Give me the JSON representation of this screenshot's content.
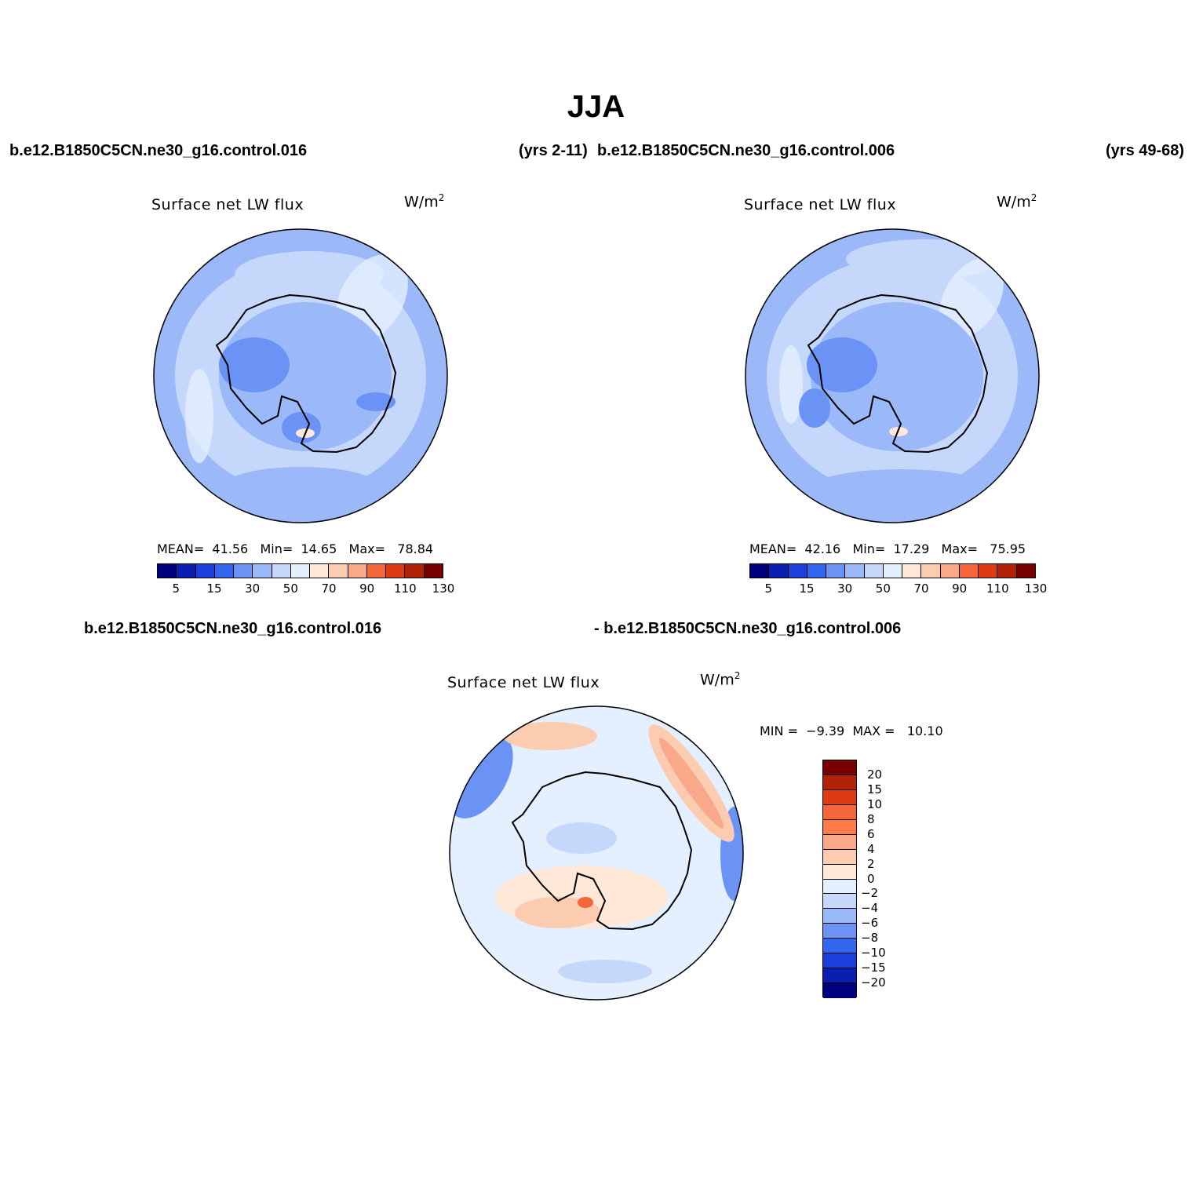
{
  "title": "JJA",
  "header": {
    "case1": "b.e12.B1850C5CN.ne30_g16.control.016",
    "years1": "(yrs 2-11)",
    "case2": "b.e12.B1850C5CN.ne30_g16.control.006",
    "years2": "(yrs 49-68)"
  },
  "diff_header": {
    "left": "b.e12.B1850C5CN.ne30_g16.control.016",
    "right": "- b.e12.B1850C5CN.ne30_g16.control.006"
  },
  "panels": [
    {
      "title": "Surface net LW flux",
      "units": "W/m",
      "units_exp": "2",
      "stats": {
        "mean_label": "MEAN=",
        "mean": "41.56",
        "min_label": "Min=",
        "min": "14.65",
        "max_label": "Max=",
        "max": "78.84"
      }
    },
    {
      "title": "Surface net LW flux",
      "units": "W/m",
      "units_exp": "2",
      "stats": {
        "mean_label": "MEAN=",
        "mean": "42.16",
        "min_label": "Min=",
        "min": "17.29",
        "max_label": "Max=",
        "max": "75.95"
      }
    },
    {
      "title": "Surface net LW flux",
      "units": "W/m",
      "units_exp": "2",
      "stats": {
        "min_label": "MIN =",
        "min": "−9.39",
        "max_label": "MAX =",
        "max": "10.10"
      }
    }
  ],
  "colorbar_main": {
    "tick_labels": [
      "5",
      "15",
      "30",
      "50",
      "70",
      "90",
      "110",
      "130"
    ],
    "colors": [
      "#00007f",
      "#0a1fb0",
      "#1a3fdd",
      "#3366ee",
      "#6a93f5",
      "#9bb8f8",
      "#c5d8fb",
      "#e4efff",
      "#ffe8d8",
      "#fcccb0",
      "#f9a88a",
      "#f4653a",
      "#e03a12",
      "#b22208",
      "#7a0000"
    ]
  },
  "colorbar_diff": {
    "tick_labels": [
      "20",
      "15",
      "10",
      "8",
      "6",
      "4",
      "2",
      "0",
      "−2",
      "−4",
      "−6",
      "−8",
      "−10",
      "−15",
      "−20"
    ],
    "colors": [
      "#7a0000",
      "#b22208",
      "#e03a12",
      "#f4653a",
      "#ff7b47",
      "#f9a88a",
      "#fcccb0",
      "#ffe8d8",
      "#e4efff",
      "#c5d8fb",
      "#9bb8f8",
      "#6a93f5",
      "#3366ee",
      "#1a3fdd",
      "#0a1fb0",
      "#00007f"
    ]
  }
}
